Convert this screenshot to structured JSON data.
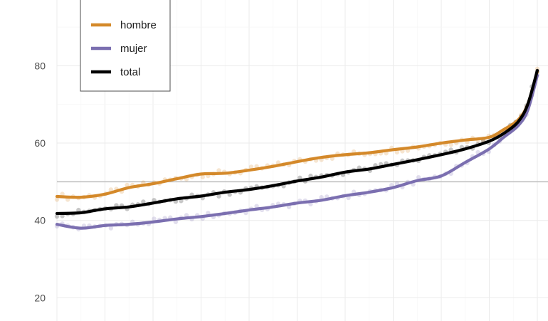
{
  "chart_data": {
    "type": "line",
    "title": "",
    "xlabel": "",
    "ylabel": "",
    "ylim": [
      14,
      97
    ],
    "xlim": [
      0,
      1
    ],
    "y_ticks": [
      20,
      40,
      60,
      80
    ],
    "grid": true,
    "reference_line": 50,
    "legend": {
      "placement": "top-left",
      "entries": [
        "hombre",
        "mujer",
        "total"
      ]
    },
    "x": [
      0,
      0.05,
      0.1,
      0.15,
      0.2,
      0.25,
      0.3,
      0.35,
      0.4,
      0.45,
      0.5,
      0.55,
      0.6,
      0.65,
      0.7,
      0.75,
      0.8,
      0.85,
      0.9,
      0.93,
      0.96,
      0.98,
      1.0
    ],
    "series": [
      {
        "name": "hombre",
        "color": "#D4892A",
        "values": [
          46.2,
          46.0,
          46.8,
          48.5,
          49.5,
          50.8,
          52.0,
          52.2,
          53.0,
          54.0,
          55.2,
          56.3,
          57.0,
          57.5,
          58.3,
          59.0,
          60.0,
          60.8,
          61.5,
          63.5,
          66.0,
          70.0,
          78.5
        ]
      },
      {
        "name": "mujer",
        "color": "#7B6FB0",
        "values": [
          39.0,
          38.0,
          38.7,
          39.0,
          39.6,
          40.4,
          41.0,
          41.8,
          42.7,
          43.5,
          44.5,
          45.2,
          46.4,
          47.3,
          48.5,
          50.3,
          51.5,
          55.0,
          58.5,
          61.5,
          64.5,
          68.5,
          77.5
        ]
      },
      {
        "name": "total",
        "color": "#000000",
        "values": [
          41.8,
          42.0,
          43.0,
          43.5,
          44.5,
          45.6,
          46.3,
          47.3,
          48.0,
          49.0,
          50.2,
          51.2,
          52.5,
          53.3,
          54.5,
          55.7,
          57.0,
          58.5,
          60.5,
          62.5,
          65.5,
          70.0,
          78.8
        ]
      }
    ]
  }
}
